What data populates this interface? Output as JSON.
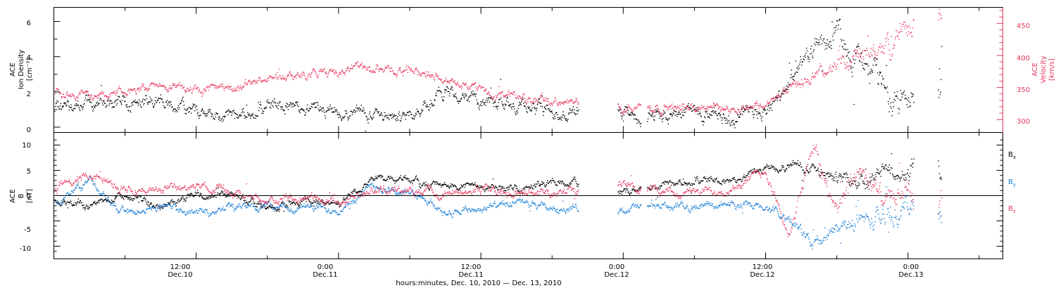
{
  "colors": {
    "density": "#000000",
    "velocity": "#e8375f",
    "bx": "#000000",
    "by": "#1a7fd8",
    "bz": "#e8375f"
  },
  "panel1": {
    "ylabel_left": [
      "ACE",
      "Ion Density",
      "[cm⁻³]"
    ],
    "ylabel_right": [
      "ACE",
      "Velocity",
      "[km/s]"
    ],
    "yticks_left": [
      "0",
      "2",
      "4",
      "6"
    ],
    "yticks_right": [
      "300",
      "350",
      "400",
      "450"
    ]
  },
  "panel2": {
    "ylabel": [
      "ACE",
      "B",
      "[nT]"
    ],
    "yticks": [
      "-10",
      "-5",
      "0",
      "5",
      "10"
    ],
    "legend": [
      "Bx",
      "By",
      "Bz"
    ]
  },
  "xaxis": {
    "ticks": [
      {
        "time": "12:00",
        "date": "Dec.10"
      },
      {
        "time": "0:00",
        "date": "Dec.11"
      },
      {
        "time": "12:00",
        "date": "Dec.11"
      },
      {
        "time": "0:00",
        "date": "Dec.12"
      },
      {
        "time": "12:00",
        "date": "Dec.12"
      },
      {
        "time": "0:00",
        "date": "Dec.13"
      }
    ],
    "label": "hours:minutes, Dec. 10, 2010 — Dec. 13, 2010"
  },
  "chart_data": [
    {
      "type": "scatter",
      "xlabel": "hours:minutes, Dec. 10, 2010 — Dec. 13, 2010",
      "ylabel": "ACE Ion Density [cm⁻³]",
      "y2label": "ACE Velocity [km/s]",
      "xlim": [
        "2010-12-10 00:00",
        "2010-12-13 08:00"
      ],
      "ylim": [
        -0.3,
        6.8
      ],
      "y2lim": [
        280,
        475
      ],
      "series": [
        {
          "name": "Ion Density",
          "x": [
            "2010-12-10 00:00",
            "2010-12-10 03:00",
            "2010-12-10 06:00",
            "2010-12-10 09:00",
            "2010-12-10 12:00",
            "2010-12-10 15:00",
            "2010-12-10 18:00",
            "2010-12-10 21:00",
            "2010-12-11 00:00",
            "2010-12-11 03:00",
            "2010-12-11 06:00",
            "2010-12-11 09:00",
            "2010-12-11 12:00",
            "2010-12-11 15:00",
            "2010-12-11 18:00",
            "2010-12-11 20:00",
            "2010-12-12 00:00",
            "2010-12-12 03:00",
            "2010-12-12 06:00",
            "2010-12-12 09:00",
            "2010-12-12 12:00",
            "2010-12-12 14:00",
            "2010-12-12 16:00",
            "2010-12-12 18:00",
            "2010-12-12 20:00",
            "2010-12-12 22:00",
            "2010-12-13 00:00",
            "2010-12-13 01:00"
          ],
          "values": [
            0.9,
            1.4,
            1.5,
            1.6,
            0.8,
            0.6,
            1.1,
            1.0,
            0.9,
            0.8,
            0.7,
            2.0,
            1.5,
            1.2,
            1.0,
            0.9,
            0.8,
            0.7,
            1.0,
            0.6,
            1.0,
            2.2,
            4.8,
            5.5,
            3.5,
            2.5,
            1.3,
            2.6
          ]
        },
        {
          "name": "Velocity",
          "x": [
            "2010-12-10 00:00",
            "2010-12-10 03:00",
            "2010-12-10 06:00",
            "2010-12-10 09:00",
            "2010-12-10 12:00",
            "2010-12-10 15:00",
            "2010-12-10 18:00",
            "2010-12-10 21:00",
            "2010-12-11 00:00",
            "2010-12-11 03:00",
            "2010-12-11 06:00",
            "2010-12-11 09:00",
            "2010-12-11 12:00",
            "2010-12-11 15:00",
            "2010-12-11 18:00",
            "2010-12-11 20:00",
            "2010-12-12 00:00",
            "2010-12-12 03:00",
            "2010-12-12 06:00",
            "2010-12-12 09:00",
            "2010-12-12 12:00",
            "2010-12-12 14:00",
            "2010-12-12 16:00",
            "2010-12-12 18:00",
            "2010-12-12 20:00",
            "2010-12-12 22:00",
            "2010-12-13 00:00",
            "2010-12-13 01:00"
          ],
          "values": [
            340,
            338,
            345,
            355,
            345,
            350,
            365,
            370,
            375,
            380,
            378,
            365,
            345,
            335,
            328,
            325,
            322,
            320,
            318,
            320,
            325,
            345,
            370,
            380,
            400,
            415,
            440,
            455
          ]
        }
      ]
    },
    {
      "type": "scatter",
      "xlabel": "hours:minutes, Dec. 10, 2010 — Dec. 13, 2010",
      "ylabel": "ACE B [nT]",
      "xlim": [
        "2010-12-10 00:00",
        "2010-12-13 08:00"
      ],
      "ylim": [
        -12.5,
        12.5
      ],
      "series": [
        {
          "name": "Bx",
          "x": [
            "2010-12-10 00:00",
            "2010-12-10 03:00",
            "2010-12-10 06:00",
            "2010-12-10 09:00",
            "2010-12-10 12:00",
            "2010-12-10 15:00",
            "2010-12-10 18:00",
            "2010-12-10 21:00",
            "2010-12-11 00:00",
            "2010-12-11 03:00",
            "2010-12-11 06:00",
            "2010-12-11 09:00",
            "2010-12-11 12:00",
            "2010-12-11 15:00",
            "2010-12-11 18:00",
            "2010-12-11 20:00",
            "2010-12-12 00:00",
            "2010-12-12 03:00",
            "2010-12-12 06:00",
            "2010-12-12 09:00",
            "2010-12-12 12:00",
            "2010-12-12 14:00",
            "2010-12-12 16:00",
            "2010-12-12 18:00",
            "2010-12-12 20:00",
            "2010-12-12 22:00",
            "2010-12-13 00:00",
            "2010-12-13 01:00"
          ],
          "values": [
            -1.0,
            -2.0,
            0.5,
            -2.5,
            0.5,
            0.5,
            -2.5,
            -1.0,
            -1.5,
            3.5,
            3.0,
            2.0,
            2.0,
            1.5,
            3.0,
            2.5,
            0.5,
            2.0,
            3.0,
            2.5,
            5.5,
            6.0,
            5.5,
            4.0,
            3.0,
            4.0,
            6.0,
            5.0
          ]
        },
        {
          "name": "By",
          "x": [
            "2010-12-10 00:00",
            "2010-12-10 03:00",
            "2010-12-10 06:00",
            "2010-12-10 09:00",
            "2010-12-10 12:00",
            "2010-12-10 15:00",
            "2010-12-10 18:00",
            "2010-12-10 21:00",
            "2010-12-11 00:00",
            "2010-12-11 03:00",
            "2010-12-11 06:00",
            "2010-12-11 09:00",
            "2010-12-11 12:00",
            "2010-12-11 15:00",
            "2010-12-11 18:00",
            "2010-12-11 20:00",
            "2010-12-12 00:00",
            "2010-12-12 03:00",
            "2010-12-12 06:00",
            "2010-12-12 09:00",
            "2010-12-12 12:00",
            "2010-12-12 14:00",
            "2010-12-12 16:00",
            "2010-12-12 18:00",
            "2010-12-12 20:00",
            "2010-12-12 22:00",
            "2010-12-13 00:00",
            "2010-12-13 01:00"
          ],
          "values": [
            -1.5,
            3.0,
            -3.5,
            -2.0,
            -3.0,
            -2.5,
            -2.0,
            -2.5,
            -2.5,
            2.0,
            0.5,
            -3.0,
            -2.5,
            -1.5,
            -2.5,
            -2.5,
            -2.5,
            -2.0,
            -2.0,
            -1.5,
            -2.5,
            -5.0,
            -9.5,
            -6.5,
            -5.0,
            -4.0,
            -2.5,
            -3.0
          ]
        },
        {
          "name": "Bz",
          "x": [
            "2010-12-10 00:00",
            "2010-12-10 03:00",
            "2010-12-10 06:00",
            "2010-12-10 09:00",
            "2010-12-10 12:00",
            "2010-12-10 15:00",
            "2010-12-10 18:00",
            "2010-12-10 21:00",
            "2010-12-11 00:00",
            "2010-12-11 03:00",
            "2010-12-11 06:00",
            "2010-12-11 09:00",
            "2010-12-11 12:00",
            "2010-12-11 15:00",
            "2010-12-11 18:00",
            "2010-12-11 20:00",
            "2010-12-12 00:00",
            "2010-12-12 03:00",
            "2010-12-12 06:00",
            "2010-12-12 09:00",
            "2010-12-12 12:00",
            "2010-12-12 14:00",
            "2010-12-12 16:00",
            "2010-12-12 18:00",
            "2010-12-12 20:00",
            "2010-12-12 22:00",
            "2010-12-13 00:00",
            "2010-12-13 01:00"
          ],
          "values": [
            1.5,
            4.0,
            1.0,
            1.5,
            2.0,
            0.5,
            -1.0,
            0.0,
            -1.5,
            1.5,
            1.0,
            0.5,
            1.5,
            0.5,
            1.0,
            0.5,
            2.0,
            1.0,
            0.5,
            1.5,
            5.0,
            -8.0,
            10.0,
            -3.0,
            6.0,
            -2.0,
            2.0,
            -3.5
          ]
        }
      ]
    }
  ]
}
